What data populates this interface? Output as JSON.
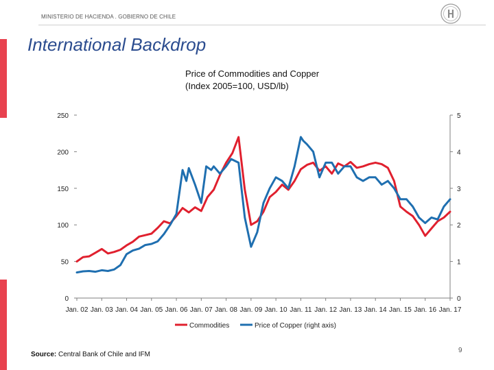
{
  "header": {
    "ministry": "MINISTERIO DE HACIENDA . GOBIERNO DE CHILE"
  },
  "slide": {
    "title": "International Backdrop",
    "page_number": "9"
  },
  "source": {
    "label": "Source:",
    "text": "Central Bank of Chile and IFM"
  },
  "colors": {
    "accent": "#e8424f",
    "title": "#2b4c8f",
    "commodities": "#e0202e",
    "copper": "#1f6fb0"
  },
  "chart_data": {
    "type": "line",
    "title": "Price of Commodities and Copper",
    "subtitle": "(Index 2005=100, USD/lb)",
    "xlabel": "",
    "ylabel": "",
    "x_ticks": [
      "Jan. 02",
      "Jan. 03",
      "Jan. 04",
      "Jan. 05",
      "Jan. 06",
      "Jan. 07",
      "Jan. 08",
      "Jan. 09",
      "Jan. 10",
      "Jan. 11",
      "Jan. 12",
      "Jan. 13",
      "Jan. 14",
      "Jan. 15",
      "Jan. 16",
      "Jan. 17"
    ],
    "x_range": [
      2002.0,
      2017.0
    ],
    "y_left": {
      "range": [
        0,
        250
      ],
      "ticks": [
        "0",
        "50",
        "100",
        "150",
        "200",
        "250"
      ]
    },
    "y_right": {
      "range": [
        0,
        5
      ],
      "ticks": [
        "0",
        "1",
        "2",
        "3",
        "4",
        "5"
      ]
    },
    "legend_position": "bottom",
    "series": [
      {
        "name": "Commodities",
        "axis": "left",
        "x": [
          2002.0,
          2002.25,
          2002.5,
          2002.75,
          2003.0,
          2003.25,
          2003.5,
          2003.75,
          2004.0,
          2004.25,
          2004.5,
          2004.75,
          2005.0,
          2005.25,
          2005.5,
          2005.75,
          2006.0,
          2006.25,
          2006.5,
          2006.75,
          2007.0,
          2007.25,
          2007.5,
          2007.75,
          2008.0,
          2008.25,
          2008.5,
          2008.75,
          2009.0,
          2009.25,
          2009.5,
          2009.75,
          2010.0,
          2010.25,
          2010.5,
          2010.75,
          2011.0,
          2011.25,
          2011.5,
          2011.75,
          2012.0,
          2012.25,
          2012.5,
          2012.75,
          2013.0,
          2013.25,
          2013.5,
          2013.75,
          2014.0,
          2014.25,
          2014.5,
          2014.75,
          2015.0,
          2015.25,
          2015.5,
          2015.75,
          2016.0,
          2016.25,
          2016.5,
          2016.75,
          2017.0
        ],
        "values": [
          50,
          56,
          57,
          62,
          67,
          61,
          63,
          66,
          72,
          77,
          84,
          86,
          88,
          96,
          105,
          102,
          112,
          123,
          117,
          124,
          119,
          138,
          148,
          168,
          185,
          198,
          220,
          148,
          100,
          105,
          118,
          138,
          145,
          155,
          148,
          160,
          176,
          182,
          185,
          174,
          180,
          170,
          184,
          180,
          186,
          178,
          180,
          183,
          185,
          183,
          178,
          160,
          125,
          118,
          112,
          100,
          85,
          95,
          105,
          110,
          118
        ]
      },
      {
        "name": "Price of Copper (right axis)",
        "axis": "right",
        "x": [
          2002.0,
          2002.25,
          2002.5,
          2002.75,
          2003.0,
          2003.25,
          2003.5,
          2003.75,
          2004.0,
          2004.25,
          2004.5,
          2004.75,
          2005.0,
          2005.25,
          2005.5,
          2005.75,
          2006.0,
          2006.25,
          2006.4,
          2006.5,
          2006.75,
          2007.0,
          2007.2,
          2007.4,
          2007.5,
          2007.75,
          2008.0,
          2008.2,
          2008.5,
          2008.75,
          2009.0,
          2009.25,
          2009.5,
          2009.75,
          2010.0,
          2010.25,
          2010.5,
          2010.75,
          2011.0,
          2011.1,
          2011.25,
          2011.5,
          2011.75,
          2012.0,
          2012.25,
          2012.5,
          2012.75,
          2013.0,
          2013.25,
          2013.5,
          2013.75,
          2014.0,
          2014.25,
          2014.5,
          2014.75,
          2015.0,
          2015.25,
          2015.5,
          2015.75,
          2016.0,
          2016.25,
          2016.5,
          2016.75,
          2017.0
        ],
        "values": [
          0.7,
          0.73,
          0.74,
          0.72,
          0.76,
          0.74,
          0.78,
          0.9,
          1.2,
          1.3,
          1.35,
          1.45,
          1.48,
          1.55,
          1.75,
          2.0,
          2.3,
          3.5,
          3.2,
          3.55,
          3.1,
          2.6,
          3.6,
          3.5,
          3.6,
          3.4,
          3.6,
          3.8,
          3.7,
          2.2,
          1.4,
          1.8,
          2.6,
          3.0,
          3.3,
          3.2,
          3.0,
          3.6,
          4.4,
          4.3,
          4.2,
          4.0,
          3.3,
          3.7,
          3.7,
          3.4,
          3.6,
          3.6,
          3.3,
          3.2,
          3.3,
          3.3,
          3.1,
          3.2,
          3.0,
          2.7,
          2.7,
          2.5,
          2.2,
          2.05,
          2.2,
          2.15,
          2.5,
          2.7
        ]
      }
    ]
  }
}
